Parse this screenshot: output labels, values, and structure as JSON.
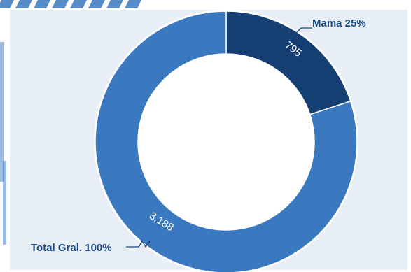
{
  "chart_data": {
    "type": "pie",
    "donut": true,
    "slices": [
      {
        "label": "Mama 25%",
        "value": 795,
        "value_label": "795",
        "color": "#153f73"
      },
      {
        "label": "Total Gral. 100%",
        "value": 3188,
        "value_label": "3,188",
        "color": "#3a78bf"
      }
    ],
    "start_angle_deg": 0,
    "clockwise": true,
    "inner_ring_color": "#ffffff"
  },
  "colors": {
    "background": "#ffffff",
    "frame": "#e8eef5",
    "decor_stripes": "#3a78bf",
    "callout_text": "#1a4a85",
    "value_text": "#ffffff",
    "leader_line": "#1a4a85"
  }
}
